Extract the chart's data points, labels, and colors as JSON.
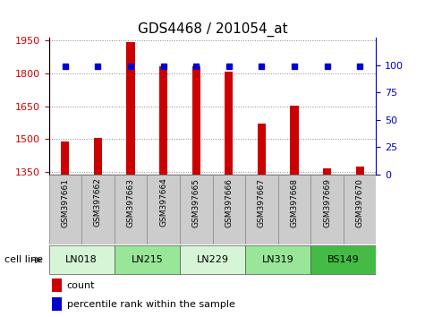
{
  "title": "GDS4468 / 201054_at",
  "samples": [
    "GSM397661",
    "GSM397662",
    "GSM397663",
    "GSM397664",
    "GSM397665",
    "GSM397666",
    "GSM397667",
    "GSM397668",
    "GSM397669",
    "GSM397670"
  ],
  "counts": [
    1490,
    1505,
    1940,
    1830,
    1830,
    1808,
    1572,
    1653,
    1368,
    1375
  ],
  "percentile_ranks": [
    99,
    99,
    99,
    99,
    99,
    99,
    99,
    99,
    99,
    99
  ],
  "ylim_left": [
    1340,
    1960
  ],
  "ylim_right": [
    0,
    125
  ],
  "yticks_left": [
    1350,
    1500,
    1650,
    1800,
    1950
  ],
  "yticks_right": [
    0,
    25,
    50,
    75,
    100
  ],
  "cell_lines": [
    {
      "name": "LN018",
      "samples": [
        0,
        1
      ],
      "color": "#d6f5d6"
    },
    {
      "name": "LN215",
      "samples": [
        2,
        3
      ],
      "color": "#99e699"
    },
    {
      "name": "LN229",
      "samples": [
        4,
        5
      ],
      "color": "#d6f5d6"
    },
    {
      "name": "LN319",
      "samples": [
        6,
        7
      ],
      "color": "#99e699"
    },
    {
      "name": "BS149",
      "samples": [
        8,
        9
      ],
      "color": "#44bb44"
    }
  ],
  "bar_color": "#cc0000",
  "dot_color": "#0000cc",
  "grid_color": "#888888",
  "left_axis_color": "#cc0000",
  "right_axis_color": "#0000cc",
  "tick_label_bg": "#cccccc",
  "title_fontsize": 11,
  "bar_width": 0.25
}
